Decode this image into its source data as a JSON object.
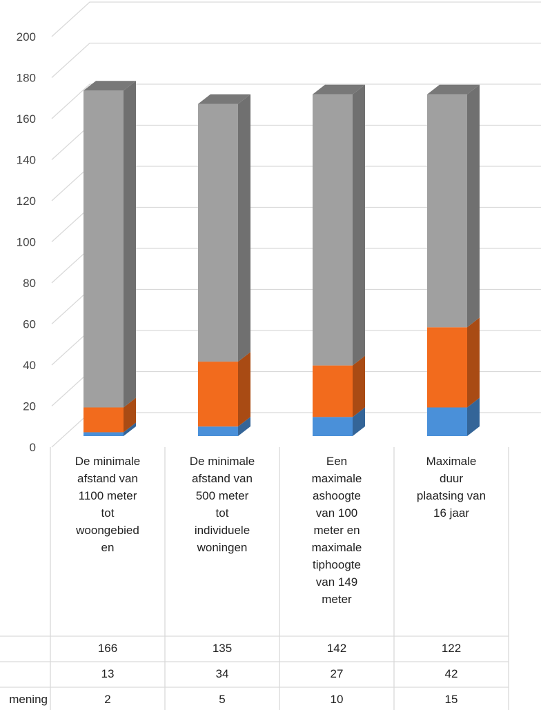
{
  "chart_data": {
    "type": "bar",
    "stacked": true,
    "three_d": true,
    "categories": [
      "De minimale afstand van 1100 meter tot woongebied en",
      "De minimale afstand van 500 meter tot individuele woningen",
      "Een maximale ashoogte van 100 meter en maximale tiphoogte van 149 meter",
      "Maximale duur plaatsing van 16 jaar"
    ],
    "category_lines": [
      [
        "De minimale",
        "afstand van",
        "1100 meter",
        "tot",
        "woongebied",
        "en"
      ],
      [
        "De minimale",
        "afstand van",
        "500 meter",
        "tot",
        "individuele",
        "woningen"
      ],
      [
        "Een",
        "maximale",
        "ashoogte",
        "van 100",
        "meter en",
        "maximale",
        "tiphoogte",
        "van 149",
        "meter"
      ],
      [
        "Maximale",
        "duur",
        "plaatsing van",
        "16 jaar"
      ]
    ],
    "series": [
      {
        "name": "",
        "values": [
          2,
          5,
          10,
          15
        ],
        "color": "#4a90d9"
      },
      {
        "name": "",
        "values": [
          13,
          34,
          27,
          42
        ],
        "color": "#f26b1d"
      },
      {
        "name": "",
        "values": [
          166,
          135,
          142,
          122
        ],
        "color": "#a0a0a0"
      }
    ],
    "table_rows": [
      {
        "label": "",
        "values": [
          "166",
          "135",
          "142",
          "122"
        ]
      },
      {
        "label": "",
        "values": [
          "13",
          "34",
          "27",
          "42"
        ]
      },
      {
        "label": "mening",
        "values": [
          "2",
          "5",
          "10",
          "15"
        ]
      }
    ],
    "y_ticks": [
      "0",
      "20",
      "40",
      "60",
      "80",
      "100",
      "120",
      "140",
      "160",
      "180",
      "200"
    ],
    "ylim": [
      0,
      200
    ],
    "grid": true,
    "title": "",
    "xlabel": "",
    "ylabel": ""
  }
}
